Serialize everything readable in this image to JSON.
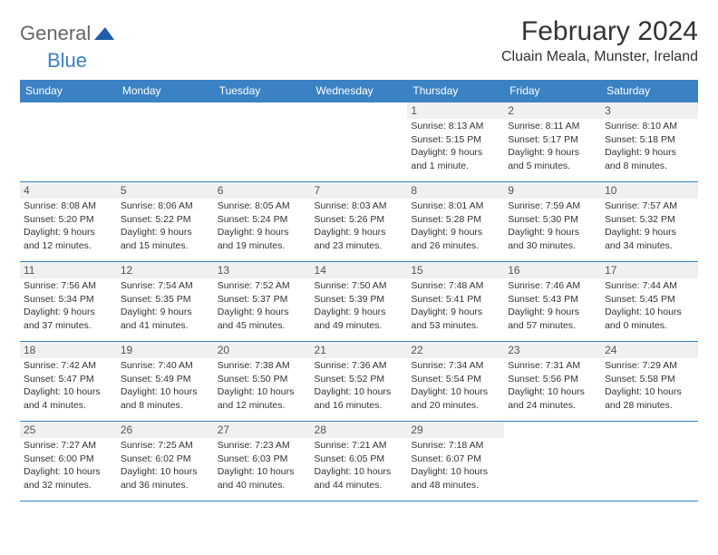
{
  "logo": {
    "text_general": "General",
    "text_blue": "Blue",
    "icon_color": "#1d5fa8"
  },
  "title": "February 2024",
  "location": "Cluain Meala, Munster, Ireland",
  "colors": {
    "header_bg": "#3b82c4",
    "header_text": "#ffffff",
    "border": "#3b82c4",
    "daynum_bg": "#f0f0f0",
    "text": "#333333"
  },
  "day_headers": [
    "Sunday",
    "Monday",
    "Tuesday",
    "Wednesday",
    "Thursday",
    "Friday",
    "Saturday"
  ],
  "weeks": [
    [
      null,
      null,
      null,
      null,
      {
        "n": "1",
        "sunrise": "Sunrise: 8:13 AM",
        "sunset": "Sunset: 5:15 PM",
        "daylight1": "Daylight: 9 hours",
        "daylight2": "and 1 minute."
      },
      {
        "n": "2",
        "sunrise": "Sunrise: 8:11 AM",
        "sunset": "Sunset: 5:17 PM",
        "daylight1": "Daylight: 9 hours",
        "daylight2": "and 5 minutes."
      },
      {
        "n": "3",
        "sunrise": "Sunrise: 8:10 AM",
        "sunset": "Sunset: 5:18 PM",
        "daylight1": "Daylight: 9 hours",
        "daylight2": "and 8 minutes."
      }
    ],
    [
      {
        "n": "4",
        "sunrise": "Sunrise: 8:08 AM",
        "sunset": "Sunset: 5:20 PM",
        "daylight1": "Daylight: 9 hours",
        "daylight2": "and 12 minutes."
      },
      {
        "n": "5",
        "sunrise": "Sunrise: 8:06 AM",
        "sunset": "Sunset: 5:22 PM",
        "daylight1": "Daylight: 9 hours",
        "daylight2": "and 15 minutes."
      },
      {
        "n": "6",
        "sunrise": "Sunrise: 8:05 AM",
        "sunset": "Sunset: 5:24 PM",
        "daylight1": "Daylight: 9 hours",
        "daylight2": "and 19 minutes."
      },
      {
        "n": "7",
        "sunrise": "Sunrise: 8:03 AM",
        "sunset": "Sunset: 5:26 PM",
        "daylight1": "Daylight: 9 hours",
        "daylight2": "and 23 minutes."
      },
      {
        "n": "8",
        "sunrise": "Sunrise: 8:01 AM",
        "sunset": "Sunset: 5:28 PM",
        "daylight1": "Daylight: 9 hours",
        "daylight2": "and 26 minutes."
      },
      {
        "n": "9",
        "sunrise": "Sunrise: 7:59 AM",
        "sunset": "Sunset: 5:30 PM",
        "daylight1": "Daylight: 9 hours",
        "daylight2": "and 30 minutes."
      },
      {
        "n": "10",
        "sunrise": "Sunrise: 7:57 AM",
        "sunset": "Sunset: 5:32 PM",
        "daylight1": "Daylight: 9 hours",
        "daylight2": "and 34 minutes."
      }
    ],
    [
      {
        "n": "11",
        "sunrise": "Sunrise: 7:56 AM",
        "sunset": "Sunset: 5:34 PM",
        "daylight1": "Daylight: 9 hours",
        "daylight2": "and 37 minutes."
      },
      {
        "n": "12",
        "sunrise": "Sunrise: 7:54 AM",
        "sunset": "Sunset: 5:35 PM",
        "daylight1": "Daylight: 9 hours",
        "daylight2": "and 41 minutes."
      },
      {
        "n": "13",
        "sunrise": "Sunrise: 7:52 AM",
        "sunset": "Sunset: 5:37 PM",
        "daylight1": "Daylight: 9 hours",
        "daylight2": "and 45 minutes."
      },
      {
        "n": "14",
        "sunrise": "Sunrise: 7:50 AM",
        "sunset": "Sunset: 5:39 PM",
        "daylight1": "Daylight: 9 hours",
        "daylight2": "and 49 minutes."
      },
      {
        "n": "15",
        "sunrise": "Sunrise: 7:48 AM",
        "sunset": "Sunset: 5:41 PM",
        "daylight1": "Daylight: 9 hours",
        "daylight2": "and 53 minutes."
      },
      {
        "n": "16",
        "sunrise": "Sunrise: 7:46 AM",
        "sunset": "Sunset: 5:43 PM",
        "daylight1": "Daylight: 9 hours",
        "daylight2": "and 57 minutes."
      },
      {
        "n": "17",
        "sunrise": "Sunrise: 7:44 AM",
        "sunset": "Sunset: 5:45 PM",
        "daylight1": "Daylight: 10 hours",
        "daylight2": "and 0 minutes."
      }
    ],
    [
      {
        "n": "18",
        "sunrise": "Sunrise: 7:42 AM",
        "sunset": "Sunset: 5:47 PM",
        "daylight1": "Daylight: 10 hours",
        "daylight2": "and 4 minutes."
      },
      {
        "n": "19",
        "sunrise": "Sunrise: 7:40 AM",
        "sunset": "Sunset: 5:49 PM",
        "daylight1": "Daylight: 10 hours",
        "daylight2": "and 8 minutes."
      },
      {
        "n": "20",
        "sunrise": "Sunrise: 7:38 AM",
        "sunset": "Sunset: 5:50 PM",
        "daylight1": "Daylight: 10 hours",
        "daylight2": "and 12 minutes."
      },
      {
        "n": "21",
        "sunrise": "Sunrise: 7:36 AM",
        "sunset": "Sunset: 5:52 PM",
        "daylight1": "Daylight: 10 hours",
        "daylight2": "and 16 minutes."
      },
      {
        "n": "22",
        "sunrise": "Sunrise: 7:34 AM",
        "sunset": "Sunset: 5:54 PM",
        "daylight1": "Daylight: 10 hours",
        "daylight2": "and 20 minutes."
      },
      {
        "n": "23",
        "sunrise": "Sunrise: 7:31 AM",
        "sunset": "Sunset: 5:56 PM",
        "daylight1": "Daylight: 10 hours",
        "daylight2": "and 24 minutes."
      },
      {
        "n": "24",
        "sunrise": "Sunrise: 7:29 AM",
        "sunset": "Sunset: 5:58 PM",
        "daylight1": "Daylight: 10 hours",
        "daylight2": "and 28 minutes."
      }
    ],
    [
      {
        "n": "25",
        "sunrise": "Sunrise: 7:27 AM",
        "sunset": "Sunset: 6:00 PM",
        "daylight1": "Daylight: 10 hours",
        "daylight2": "and 32 minutes."
      },
      {
        "n": "26",
        "sunrise": "Sunrise: 7:25 AM",
        "sunset": "Sunset: 6:02 PM",
        "daylight1": "Daylight: 10 hours",
        "daylight2": "and 36 minutes."
      },
      {
        "n": "27",
        "sunrise": "Sunrise: 7:23 AM",
        "sunset": "Sunset: 6:03 PM",
        "daylight1": "Daylight: 10 hours",
        "daylight2": "and 40 minutes."
      },
      {
        "n": "28",
        "sunrise": "Sunrise: 7:21 AM",
        "sunset": "Sunset: 6:05 PM",
        "daylight1": "Daylight: 10 hours",
        "daylight2": "and 44 minutes."
      },
      {
        "n": "29",
        "sunrise": "Sunrise: 7:18 AM",
        "sunset": "Sunset: 6:07 PM",
        "daylight1": "Daylight: 10 hours",
        "daylight2": "and 48 minutes."
      },
      null,
      null
    ]
  ]
}
